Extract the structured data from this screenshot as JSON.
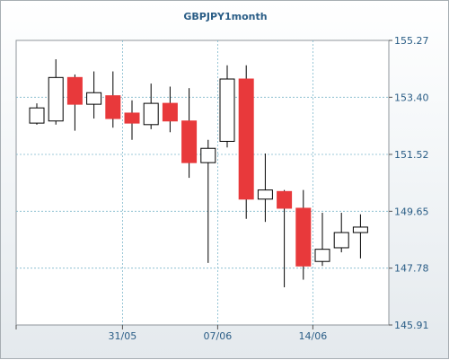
{
  "chart_data": {
    "type": "candlestick",
    "title": "GBPJPY1month",
    "ylim": [
      145.91,
      155.27
    ],
    "y_ticks": [
      "155.27",
      "153.40",
      "151.52",
      "149.65",
      "147.78",
      "145.91"
    ],
    "x_ticks": [
      "31/05",
      "07/06",
      "14/06"
    ],
    "grid": true,
    "colors": {
      "down": "#e8393b",
      "up": "#ffffff",
      "outline": "#000000",
      "accent": "#2a5d86"
    },
    "candles": [
      {
        "open": 152.55,
        "high": 153.2,
        "low": 152.5,
        "close": 153.05
      },
      {
        "open": 152.62,
        "high": 154.65,
        "low": 152.5,
        "close": 154.05
      },
      {
        "open": 154.05,
        "high": 154.15,
        "low": 152.3,
        "close": 153.17
      },
      {
        "open": 153.17,
        "high": 154.25,
        "low": 152.7,
        "close": 153.55
      },
      {
        "open": 153.45,
        "high": 154.25,
        "low": 152.4,
        "close": 152.7
      },
      {
        "open": 152.88,
        "high": 153.3,
        "low": 152.0,
        "close": 152.55
      },
      {
        "open": 152.5,
        "high": 153.85,
        "low": 152.35,
        "close": 153.2
      },
      {
        "open": 153.2,
        "high": 153.75,
        "low": 152.25,
        "close": 152.62
      },
      {
        "open": 152.62,
        "high": 153.7,
        "low": 150.75,
        "close": 151.25
      },
      {
        "open": 151.25,
        "high": 152.0,
        "low": 147.95,
        "close": 151.72
      },
      {
        "open": 151.95,
        "high": 154.45,
        "low": 151.75,
        "close": 154.0
      },
      {
        "open": 154.0,
        "high": 154.45,
        "low": 149.4,
        "close": 150.05
      },
      {
        "open": 150.05,
        "high": 151.55,
        "low": 149.3,
        "close": 150.35
      },
      {
        "open": 150.3,
        "high": 150.35,
        "low": 147.15,
        "close": 149.75
      },
      {
        "open": 149.75,
        "high": 150.35,
        "low": 147.4,
        "close": 147.85
      },
      {
        "open": 148.0,
        "high": 149.6,
        "low": 147.85,
        "close": 148.4
      },
      {
        "open": 148.45,
        "high": 149.6,
        "low": 148.3,
        "close": 148.95
      },
      {
        "open": 148.95,
        "high": 149.55,
        "low": 148.1,
        "close": 149.13
      }
    ]
  }
}
